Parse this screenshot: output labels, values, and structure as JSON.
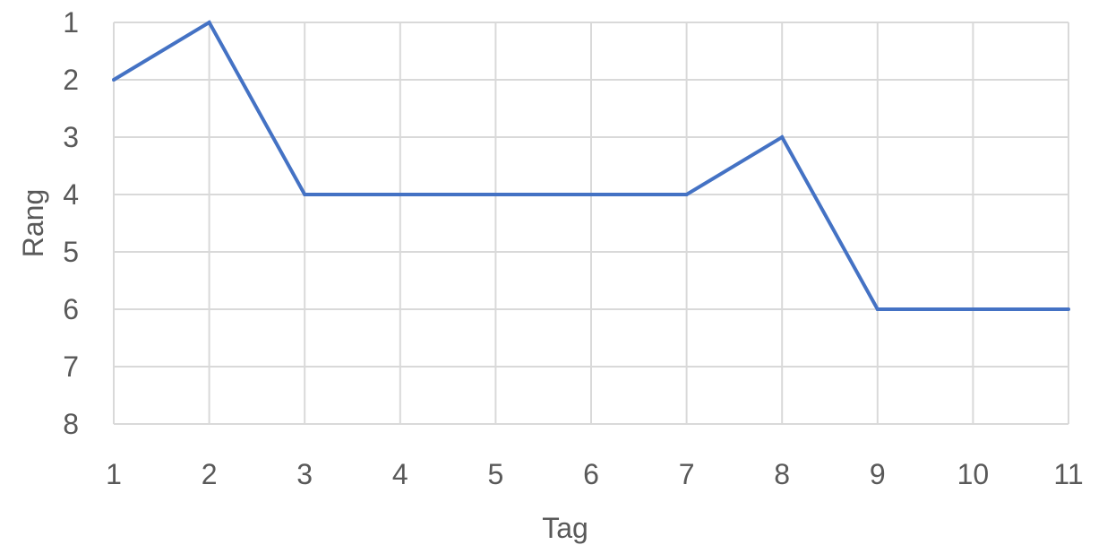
{
  "chart_data": {
    "type": "line",
    "title": "",
    "xlabel": "Tag",
    "ylabel": "Rang",
    "x": [
      1,
      2,
      3,
      4,
      5,
      6,
      7,
      8,
      9,
      10,
      11
    ],
    "x_tick_labels": [
      "1",
      "2",
      "3",
      "4",
      "5",
      "6",
      "7",
      "8",
      "9",
      "10",
      "11"
    ],
    "y_tick_labels": [
      "1",
      "2",
      "3",
      "4",
      "5",
      "6",
      "7",
      "8"
    ],
    "xlim": [
      1,
      11
    ],
    "ylim": [
      1,
      8
    ],
    "y_axis_reversed": true,
    "grid": true,
    "legend": "none",
    "series": [
      {
        "values": [
          2,
          1,
          4,
          4,
          4,
          4,
          4,
          3,
          6,
          6,
          6
        ],
        "color": "#4472c4"
      }
    ]
  },
  "colors": {
    "grid": "#d9d9d9",
    "text": "#595959"
  }
}
